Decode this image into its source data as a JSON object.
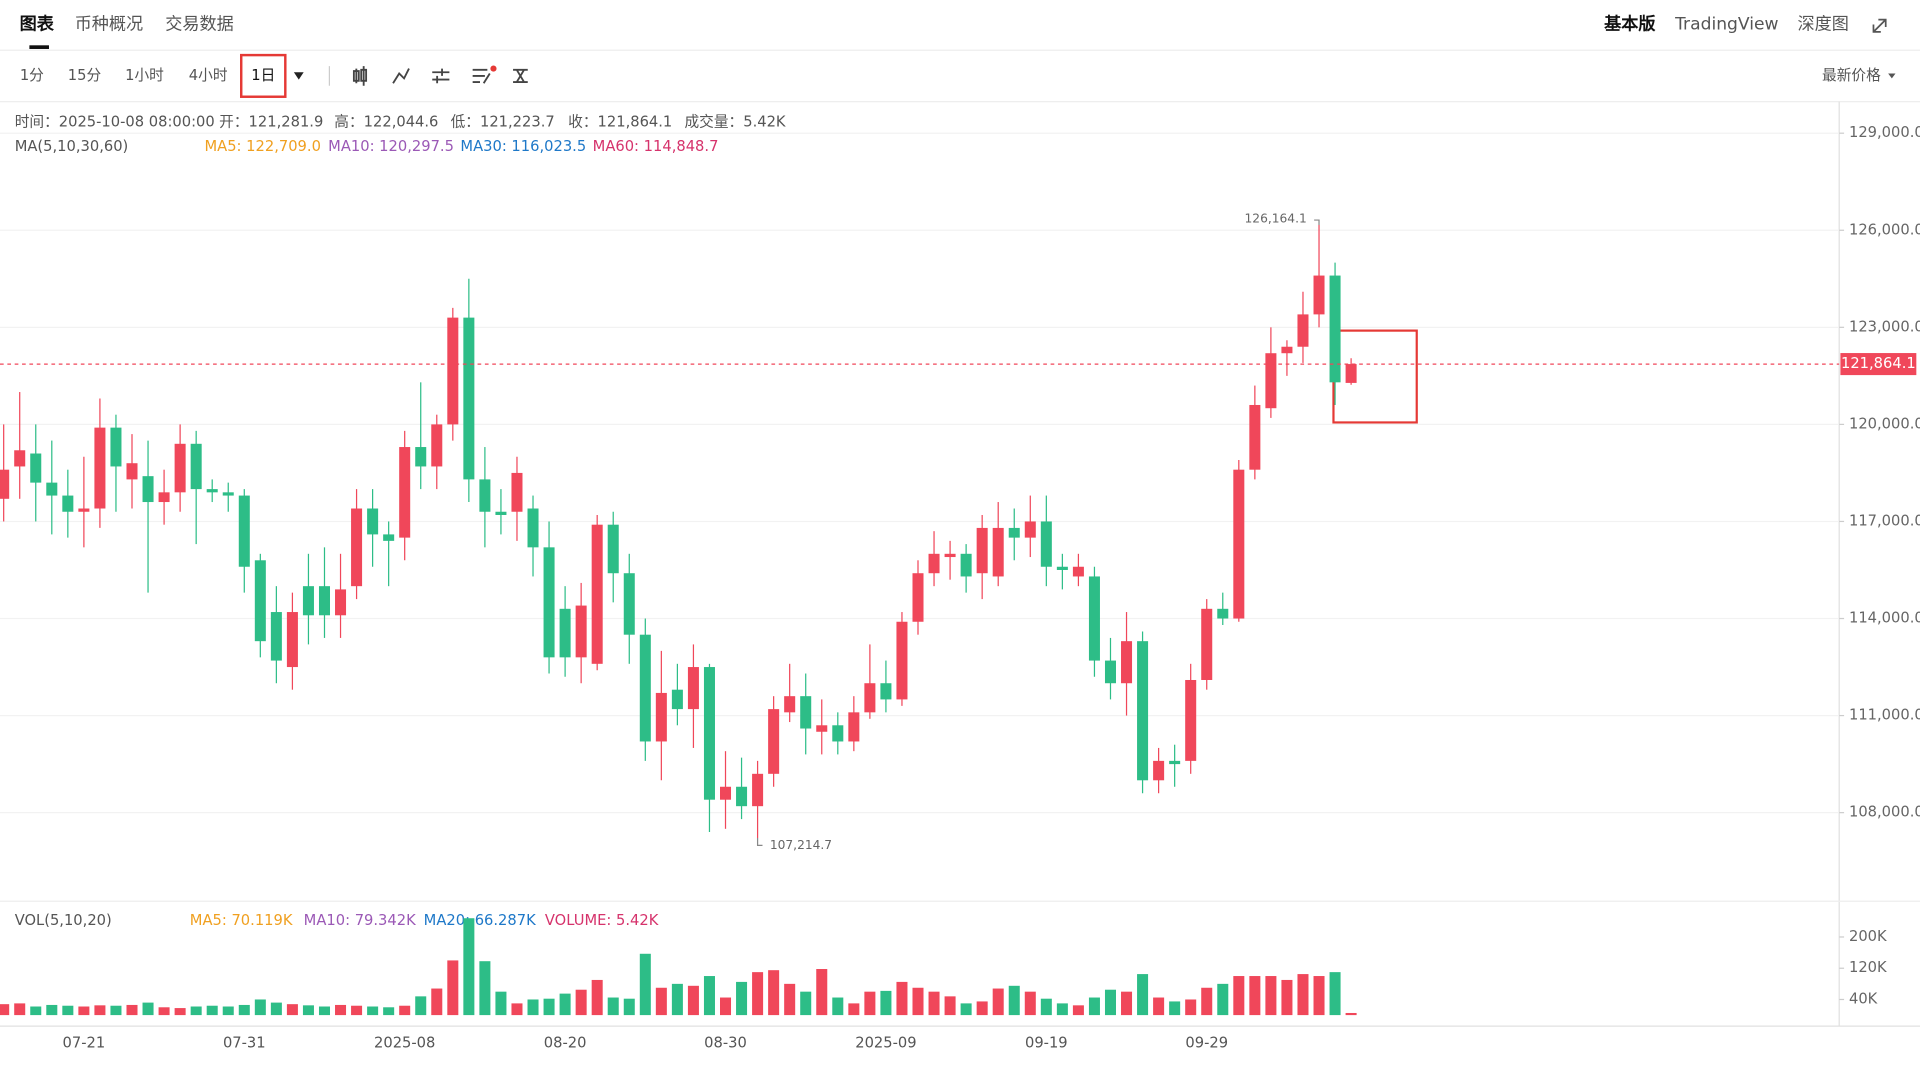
{
  "tabs": [
    "图表",
    "币种概况",
    "交易数据"
  ],
  "header_right": [
    "基本版",
    "TradingView",
    "深度图"
  ],
  "intervals": [
    "1分",
    "15分",
    "1小时",
    "4小时",
    "1日"
  ],
  "price_selector": "最新价格",
  "info": [
    "时间：2025-10-08 08:00:00",
    "开：121,281.9",
    "高：122,044.6",
    "低：121,223.7",
    "收：121,864.1",
    "成交量：5.42K"
  ],
  "ma_legend": [
    {
      "text": "MA(5,10,30,60)",
      "color": "#555555"
    },
    {
      "text": "MA5: 122,709.0",
      "color": "#f0a020"
    },
    {
      "text": "MA10: 120,297.5",
      "color": "#9b59b6"
    },
    {
      "text": "MA30: 116,023.5",
      "color": "#1e78c8"
    },
    {
      "text": "MA60: 114,848.7",
      "color": "#d6336c"
    }
  ],
  "vol_legend": [
    {
      "text": "VOL(5,10,20)",
      "color": "#555555"
    },
    {
      "text": "MA5: 70.119K",
      "color": "#f0a020"
    },
    {
      "text": "MA10: 79.342K",
      "color": "#9b59b6"
    },
    {
      "text": "MA20: 66.287K",
      "color": "#1e78c8"
    },
    {
      "text": "VOLUME: 5.42K",
      "color": "#d6336c"
    }
  ],
  "chart_data": [
    {
      "type": "candlestick",
      "up_color": "#f0475a",
      "down_color": "#2dbd87",
      "categories": [
        null,
        null,
        null,
        null,
        null,
        "07-21",
        null,
        null,
        null,
        null,
        null,
        null,
        null,
        null,
        null,
        "07-31",
        null,
        null,
        null,
        null,
        null,
        null,
        null,
        null,
        null,
        "2025-08",
        null,
        null,
        null,
        null,
        null,
        null,
        null,
        null,
        null,
        "08-20",
        null,
        null,
        null,
        null,
        null,
        null,
        null,
        null,
        null,
        "08-30",
        null,
        null,
        null,
        null,
        null,
        null,
        null,
        null,
        null,
        "2025-09",
        null,
        null,
        null,
        null,
        null,
        null,
        null,
        null,
        null,
        "09-19",
        null,
        null,
        null,
        null,
        null,
        null,
        null,
        null,
        null,
        "09-29",
        null,
        null,
        null,
        null,
        null,
        null,
        null,
        null,
        null
      ],
      "open": [
        117700,
        118700,
        119100,
        118200,
        117800,
        117300,
        117400,
        119900,
        118300,
        118400,
        117600,
        117900,
        119400,
        118000,
        117900,
        117800,
        115800,
        114200,
        112500,
        115000,
        115000,
        114100,
        115000,
        117400,
        116600,
        116500,
        119300,
        118700,
        120000,
        123300,
        118300,
        117300,
        117300,
        117400,
        116200,
        114300,
        112800,
        112600,
        116900,
        115400,
        113500,
        110200,
        111800,
        111200,
        112500,
        108400,
        108800,
        108200,
        109200,
        111100,
        111600,
        110500,
        110700,
        110200,
        111100,
        112000,
        111500,
        113900,
        115400,
        115900,
        116000,
        115400,
        115300,
        116800,
        116500,
        117000,
        115600,
        115300,
        115300,
        112700,
        112000,
        113300,
        109000,
        109600,
        109600,
        112100,
        114300,
        114000,
        118600,
        120500,
        122200,
        122400,
        123400,
        124600,
        121281.9
      ],
      "high": [
        120000,
        121000,
        120000,
        119500,
        118600,
        119000,
        120800,
        120300,
        119700,
        119500,
        118600,
        120000,
        119800,
        118300,
        118200,
        118000,
        116000,
        115000,
        114800,
        116000,
        116200,
        116000,
        118000,
        118000,
        117000,
        119800,
        121300,
        120300,
        123600,
        124500,
        119300,
        118000,
        119000,
        117800,
        117000,
        115000,
        115100,
        117200,
        117300,
        116000,
        114000,
        113000,
        112600,
        113200,
        112600,
        109900,
        109700,
        109600,
        111600,
        112600,
        112300,
        111500,
        111100,
        111600,
        113200,
        112700,
        114200,
        115800,
        116700,
        116400,
        116300,
        117200,
        117600,
        117400,
        117800,
        117800,
        116000,
        116000,
        115600,
        113400,
        114200,
        113600,
        110000,
        110100,
        112600,
        114600,
        114800,
        118900,
        121200,
        123000,
        122600,
        124100,
        126164.1,
        125000,
        122044.6
      ],
      "low": [
        117000,
        117700,
        117000,
        116600,
        116500,
        116200,
        116800,
        117300,
        117400,
        114800,
        116900,
        117300,
        116300,
        117600,
        117300,
        114800,
        112800,
        112000,
        111800,
        113200,
        113400,
        113400,
        114600,
        115600,
        115000,
        115800,
        118000,
        118000,
        119500,
        117600,
        116200,
        116600,
        116400,
        115300,
        112300,
        112200,
        112000,
        112400,
        114500,
        112600,
        109600,
        109000,
        110700,
        110000,
        107400,
        107500,
        107800,
        107214.7,
        108800,
        110800,
        109800,
        109800,
        109800,
        109900,
        110900,
        111100,
        111300,
        113500,
        115000,
        115200,
        114800,
        114600,
        115000,
        115800,
        115900,
        115000,
        114900,
        115000,
        112200,
        111500,
        111000,
        108600,
        108600,
        108800,
        109200,
        111800,
        113800,
        113900,
        118300,
        120200,
        121500,
        121900,
        123000,
        120600,
        121223.7
      ],
      "close": [
        118600,
        119200,
        118200,
        117800,
        117300,
        117400,
        119900,
        118700,
        118800,
        117600,
        117900,
        119400,
        118000,
        117900,
        117800,
        115600,
        113300,
        112700,
        114200,
        114100,
        114100,
        114900,
        117400,
        116600,
        116400,
        119300,
        118700,
        120000,
        123300,
        118300,
        117300,
        117200,
        118500,
        116200,
        112800,
        112800,
        114400,
        116900,
        115400,
        113500,
        110200,
        111700,
        111200,
        112500,
        108400,
        108800,
        108200,
        109200,
        111200,
        111600,
        110600,
        110700,
        110200,
        111100,
        112000,
        111500,
        113900,
        115400,
        116000,
        116000,
        115300,
        116800,
        116800,
        116500,
        117000,
        115600,
        115500,
        115600,
        112700,
        112000,
        113300,
        109000,
        109600,
        109500,
        112100,
        114300,
        114000,
        118600,
        120600,
        122200,
        122400,
        123400,
        124600,
        121300,
        121864.1
      ],
      "ylim": [
        105300,
        129900
      ],
      "yticks": [
        {
          "value": 108000,
          "label": "108,000.0"
        },
        {
          "value": 111000,
          "label": "111,000.0"
        },
        {
          "value": 114000,
          "label": "114,000.0"
        },
        {
          "value": 117000,
          "label": "117,000.0"
        },
        {
          "value": 120000,
          "label": "120,000.0"
        },
        {
          "value": 123000,
          "label": "123,000.0"
        },
        {
          "value": 126000,
          "label": "126,000.0"
        },
        {
          "value": 129000,
          "label": "129,000.0"
        }
      ],
      "last_price": {
        "value": 121864.1,
        "label": "121,864.1"
      },
      "annotations": [
        {
          "value": 126164.1,
          "label": "126,164.1"
        },
        {
          "value": 107214.7,
          "label": "107,214.7"
        }
      ]
    },
    {
      "type": "bar",
      "values": [
        28000,
        30000,
        22000,
        26000,
        24000,
        22000,
        25000,
        24000,
        26000,
        32000,
        20000,
        18000,
        22000,
        24000,
        22000,
        26000,
        40000,
        32000,
        28000,
        25000,
        22000,
        26000,
        24000,
        22000,
        20000,
        24000,
        48000,
        68000,
        140000,
        248000,
        138000,
        60000,
        30000,
        40000,
        42000,
        55000,
        65000,
        90000,
        45000,
        42000,
        157000,
        70000,
        80000,
        75000,
        100000,
        45000,
        85000,
        110000,
        115000,
        80000,
        60000,
        118000,
        45000,
        30000,
        60000,
        62000,
        85000,
        70000,
        60000,
        48000,
        30000,
        35000,
        68000,
        75000,
        60000,
        42000,
        30000,
        25000,
        45000,
        65000,
        60000,
        105000,
        45000,
        35000,
        40000,
        70000,
        80000,
        100000,
        100000,
        100000,
        90000,
        105000,
        100000,
        110000,
        5420
      ],
      "ylim": [
        0,
        279000
      ],
      "yticks": [
        {
          "value": 40000,
          "label": "40K"
        },
        {
          "value": 120000,
          "label": "120K"
        },
        {
          "value": 200000,
          "label": "200K"
        }
      ]
    }
  ]
}
